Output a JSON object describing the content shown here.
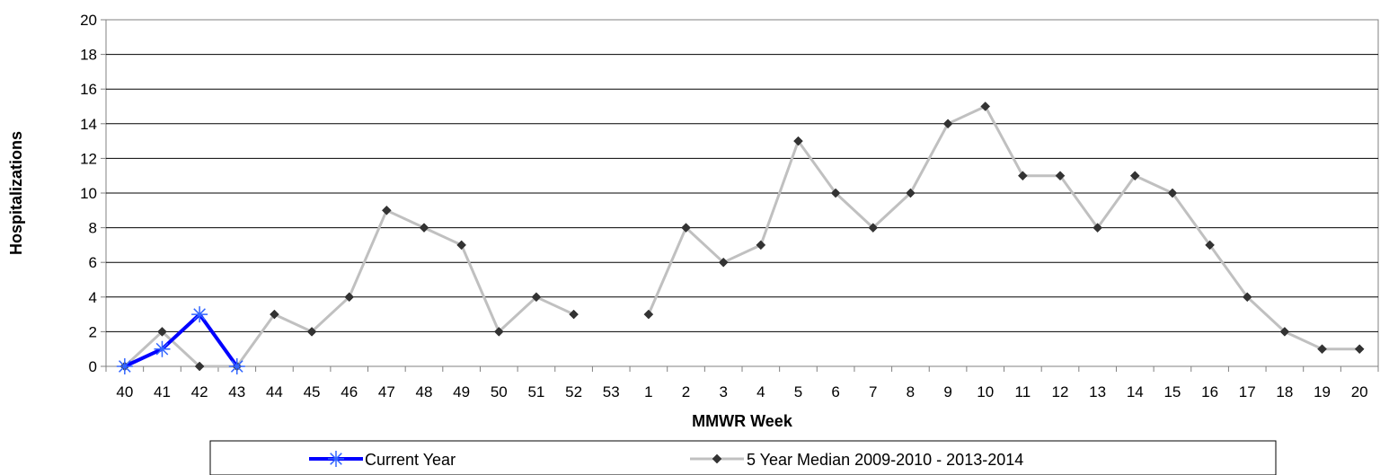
{
  "chart_data": {
    "type": "line",
    "xlabel": "MMWR Week",
    "ylabel": "Hospitalizations",
    "ylim": [
      0,
      20
    ],
    "yticks": [
      "0",
      "2",
      "4",
      "6",
      "8",
      "10",
      "12",
      "14",
      "16",
      "18",
      "20"
    ],
    "categories": [
      "40",
      "41",
      "42",
      "43",
      "44",
      "45",
      "46",
      "47",
      "48",
      "49",
      "50",
      "51",
      "52",
      "53",
      "1",
      "2",
      "3",
      "4",
      "5",
      "6",
      "7",
      "8",
      "9",
      "10",
      "11",
      "12",
      "13",
      "14",
      "15",
      "16",
      "17",
      "18",
      "19",
      "20"
    ],
    "grid": "horizontal",
    "legend_position": "bottom",
    "series": [
      {
        "name": "Current Year",
        "color": "#0000ff",
        "marker": "asterisk",
        "values": [
          0,
          1,
          3,
          0,
          null,
          null,
          null,
          null,
          null,
          null,
          null,
          null,
          null,
          null,
          null,
          null,
          null,
          null,
          null,
          null,
          null,
          null,
          null,
          null,
          null,
          null,
          null,
          null,
          null,
          null,
          null,
          null,
          null,
          null
        ]
      },
      {
        "name": "5 Year Median 2009-2010 - 2013-2014",
        "color": "#c0c0c0",
        "marker": "diamond",
        "values": [
          0,
          2,
          0,
          0,
          3,
          2,
          4,
          9,
          8,
          7,
          2,
          4,
          3,
          null,
          3,
          8,
          6,
          7,
          13,
          10,
          8,
          10,
          14,
          15,
          11,
          11,
          8,
          11,
          10,
          7,
          4,
          2,
          1,
          1
        ]
      }
    ]
  }
}
